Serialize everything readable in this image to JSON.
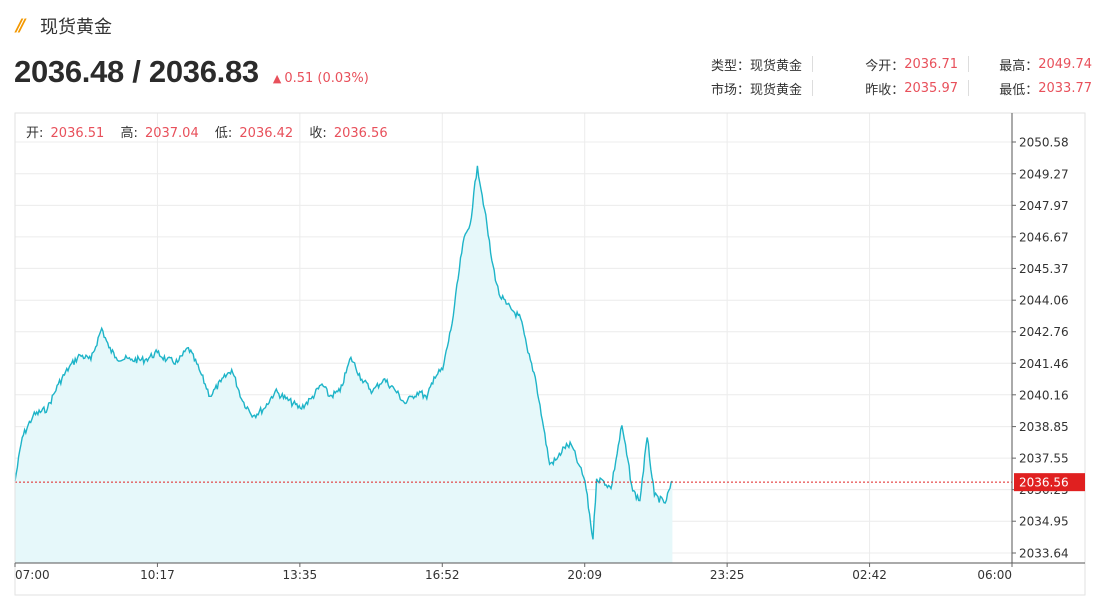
{
  "header": {
    "title": "现货黄金",
    "price": "2036.48 / 2036.83",
    "change": "0.51 (0.03%)"
  },
  "stats": {
    "type_label": "类型：",
    "type_value": "现货黄金",
    "market_label": "市场：",
    "market_value": "现货黄金",
    "open_label": "今开：",
    "open_value": "2036.71",
    "prev_close_label": "昨收：",
    "prev_close_value": "2035.97",
    "high_label": "最高：",
    "high_value": "2049.74",
    "low_label": "最低：",
    "low_value": "2033.77"
  },
  "ohlc": {
    "open_label": "开:",
    "open_value": "2036.51",
    "high_label": "高:",
    "high_value": "2037.04",
    "low_label": "低:",
    "low_value": "2036.42",
    "close_label": "收:",
    "close_value": "2036.56"
  },
  "colors": {
    "line": "#1eb4c8",
    "fill": "#e6f8fa",
    "up": "#e8505b",
    "current_tag": "#e02020"
  },
  "chart_data": {
    "type": "area",
    "x_tick_labels": [
      "07:00",
      "10:17",
      "13:35",
      "16:52",
      "20:09",
      "23:25",
      "02:42",
      "06:00"
    ],
    "y_tick_labels": [
      "2050.58",
      "2049.27",
      "2047.97",
      "2046.67",
      "2045.37",
      "2044.06",
      "2042.76",
      "2041.46",
      "2040.16",
      "2038.85",
      "2037.55",
      "2036.25",
      "2034.95",
      "2033.64"
    ],
    "ylim": [
      2033.64,
      2050.58
    ],
    "current_value": "2036.56",
    "grid": true,
    "series": [
      {
        "x": [
          "07:00",
          "07:10",
          "07:25",
          "07:45",
          "08:00",
          "08:15",
          "08:30",
          "08:45",
          "09:00",
          "09:10",
          "09:20",
          "09:40",
          "10:00",
          "10:17",
          "10:30",
          "10:45",
          "11:00",
          "11:15",
          "11:30",
          "11:45",
          "12:00",
          "12:15",
          "12:30",
          "12:45",
          "13:00",
          "13:15",
          "13:35",
          "13:50",
          "14:05",
          "14:15",
          "14:30",
          "14:45",
          "15:00",
          "15:15",
          "15:30",
          "15:45",
          "16:00",
          "16:10",
          "16:20",
          "16:30",
          "16:40",
          "16:52",
          "17:05",
          "17:20",
          "17:30",
          "17:40",
          "17:50",
          "18:00",
          "18:10",
          "18:20",
          "18:30",
          "18:40",
          "18:50",
          "19:00",
          "19:10",
          "19:20",
          "19:30",
          "19:40",
          "19:50",
          "20:00",
          "20:09",
          "20:20",
          "20:25",
          "20:35",
          "20:45",
          "21:00",
          "21:15",
          "21:25",
          "21:35",
          "21:45",
          "22:00",
          "22:10"
        ],
        "values": [
          2036.6,
          2038.4,
          2039.3,
          2039.6,
          2040.6,
          2041.3,
          2041.8,
          2041.6,
          2042.9,
          2042.1,
          2041.7,
          2041.6,
          2041.6,
          2041.9,
          2041.6,
          2041.5,
          2042.1,
          2041.2,
          2040.1,
          2040.7,
          2041.2,
          2039.9,
          2039.3,
          2039.6,
          2040.3,
          2040.0,
          2039.6,
          2040.0,
          2040.6,
          2040.1,
          2040.3,
          2041.7,
          2040.8,
          2040.3,
          2040.8,
          2040.4,
          2039.8,
          2040.1,
          2040.3,
          2040.0,
          2040.9,
          2041.2,
          2043.1,
          2046.4,
          2047.2,
          2049.6,
          2047.8,
          2045.7,
          2044.3,
          2043.9,
          2043.6,
          2043.3,
          2041.9,
          2040.9,
          2039.1,
          2037.3,
          2037.5,
          2038.0,
          2038.1,
          2037.3,
          2036.6,
          2034.2,
          2036.7,
          2036.6,
          2036.3,
          2038.9,
          2036.2,
          2035.8,
          2038.4,
          2036.0,
          2035.7,
          2036.6
        ]
      }
    ]
  }
}
